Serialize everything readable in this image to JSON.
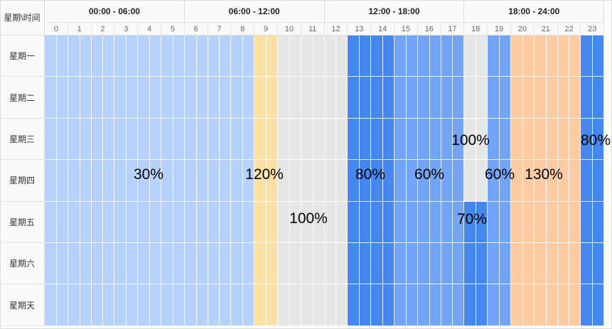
{
  "corner_label": "星期\\时间",
  "time_groups": [
    "00:00 - 06:00",
    "06:00 - 12:00",
    "12:00 - 18:00",
    "18:00 - 24:00"
  ],
  "hours": [
    "0",
    "1",
    "2",
    "3",
    "4",
    "5",
    "6",
    "7",
    "8",
    "9",
    "10",
    "11",
    "12",
    "13",
    "14",
    "15",
    "16",
    "17",
    "18",
    "19",
    "20",
    "21",
    "22",
    "23"
  ],
  "days": [
    "星期一",
    "星期二",
    "星期三",
    "星期四",
    "星期五",
    "星期六",
    "星期天"
  ],
  "colors": {
    "light_blue": "#b6d1fa",
    "yellow": "#fde0a3",
    "gray": "#e6e6e6",
    "blue": "#4686ef",
    "mid_blue": "#72a5f5",
    "peach": "#fdcba3",
    "white": "#ffffff"
  },
  "rate_by_hour": [
    "light_blue",
    "light_blue",
    "light_blue",
    "light_blue",
    "light_blue",
    "light_blue",
    "light_blue",
    "light_blue",
    "light_blue",
    "yellow",
    "gray",
    "gray",
    "gray",
    "blue",
    "blue",
    "mid_blue",
    "mid_blue",
    "mid_blue",
    "gray",
    "mid_blue",
    "peach",
    "peach",
    "peach",
    "blue"
  ],
  "overrides": [
    {
      "day": 4,
      "hour": 18,
      "color": "blue"
    },
    {
      "day": 5,
      "hour": 18,
      "color": "blue"
    },
    {
      "day": 6,
      "hour": 18,
      "color": "blue"
    }
  ],
  "rate_labels": [
    {
      "text": "30%"
    },
    {
      "text": "120%"
    },
    {
      "text": "100%"
    },
    {
      "text": "80%"
    },
    {
      "text": "60%"
    },
    {
      "text": "100%"
    },
    {
      "text": "70%"
    },
    {
      "text": "60%"
    },
    {
      "text": "130%"
    },
    {
      "text": "80%"
    }
  ]
}
